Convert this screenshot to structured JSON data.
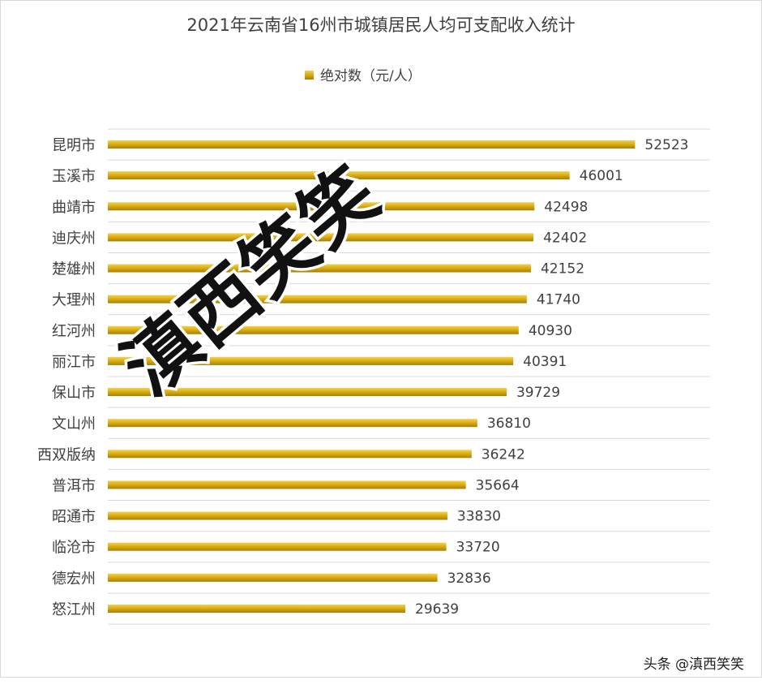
{
  "chart_data": {
    "type": "bar",
    "orientation": "horizontal",
    "title": "2021年云南省16州市城镇居民人均可支配收入统计",
    "categories": [
      "昆明市",
      "玉溪市",
      "曲靖市",
      "迪庆州",
      "楚雄州",
      "大理州",
      "红河州",
      "丽江市",
      "保山市",
      "文山州",
      "西双版纳",
      "普洱市",
      "昭通市",
      "临沧市",
      "德宏州",
      "怒江州"
    ],
    "series": [
      {
        "name": "绝对数（元/人）",
        "values": [
          52523,
          46001,
          42498,
          42402,
          42152,
          41740,
          40930,
          40391,
          39729,
          36810,
          36242,
          35664,
          33830,
          33720,
          32836,
          29639
        ],
        "color": "#d9aa10"
      }
    ],
    "xlim": [
      0,
      60000
    ],
    "grid": true,
    "legend_position": "top",
    "data_labels": true
  },
  "overlay": {
    "stamp": "滇西笑笑",
    "watermark": "头条 @滇西笑笑"
  },
  "colors": {
    "bar_top": "#f3d14a",
    "bar_mid": "#d9aa10",
    "bar_bottom": "#a87f06",
    "grid": "#d9d9d9"
  }
}
